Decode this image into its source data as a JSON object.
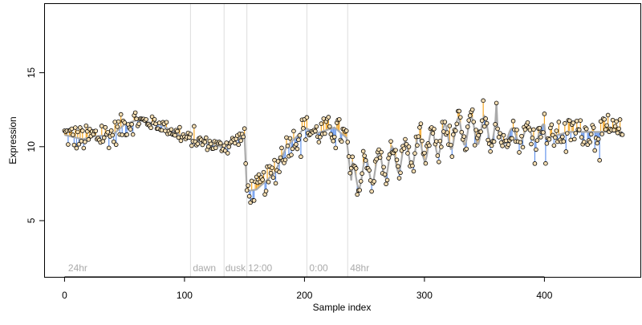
{
  "chart_data": {
    "type": "scatter",
    "title": "",
    "xlabel": "Sample index",
    "ylabel": "Expression",
    "xlim": [
      -17,
      480
    ],
    "ylim": [
      1.2,
      19.7
    ],
    "xticks": [
      0,
      100,
      200,
      300,
      400
    ],
    "yticks": [
      5,
      10,
      15
    ],
    "grid": false,
    "legend": "none",
    "colors": {
      "trend": "#aaaaaa",
      "above": "#f5a623",
      "below": "#6495ed",
      "point_fill": "#f5deb3",
      "point_stroke": "#000000",
      "separator": "#dddddd",
      "annotation": "#aaaaaa"
    },
    "separators": [
      105,
      133,
      152,
      202,
      236
    ],
    "annotations": [
      {
        "x": 3,
        "text": "24hr"
      },
      {
        "x": 107,
        "text": "dawn"
      },
      {
        "x": 134,
        "text": "dusk"
      },
      {
        "x": 153,
        "text": "12:00"
      },
      {
        "x": 204,
        "text": "0:00"
      },
      {
        "x": 238,
        "text": "48hr"
      }
    ],
    "trend_knots": [
      [
        0,
        10.8
      ],
      [
        15,
        10.5
      ],
      [
        25,
        10.7
      ],
      [
        40,
        10.8
      ],
      [
        50,
        11.5
      ],
      [
        60,
        11.8
      ],
      [
        80,
        11.5
      ],
      [
        100,
        10.6
      ],
      [
        120,
        10.2
      ],
      [
        130,
        10.0
      ],
      [
        140,
        10.3
      ],
      [
        150,
        10.8
      ],
      [
        152,
        7.0
      ],
      [
        160,
        7.1
      ],
      [
        175,
        8.2
      ],
      [
        185,
        10.0
      ],
      [
        195,
        10.8
      ],
      [
        200,
        11.3
      ],
      [
        210,
        10.9
      ],
      [
        225,
        11.3
      ],
      [
        235,
        10.6
      ],
      [
        240,
        7.0
      ],
      [
        300,
        9.0
      ],
      [
        330,
        10.1
      ],
      [
        360,
        10.2
      ],
      [
        390,
        10.3
      ],
      [
        420,
        11.0
      ],
      [
        465,
        11.0
      ]
    ],
    "wave_segments": [
      {
        "from": 240,
        "to": 360,
        "period": 11,
        "amplitude": 1.9
      },
      {
        "from": 360,
        "to": 400,
        "period": 13,
        "amplitude": 1.0
      }
    ]
  }
}
